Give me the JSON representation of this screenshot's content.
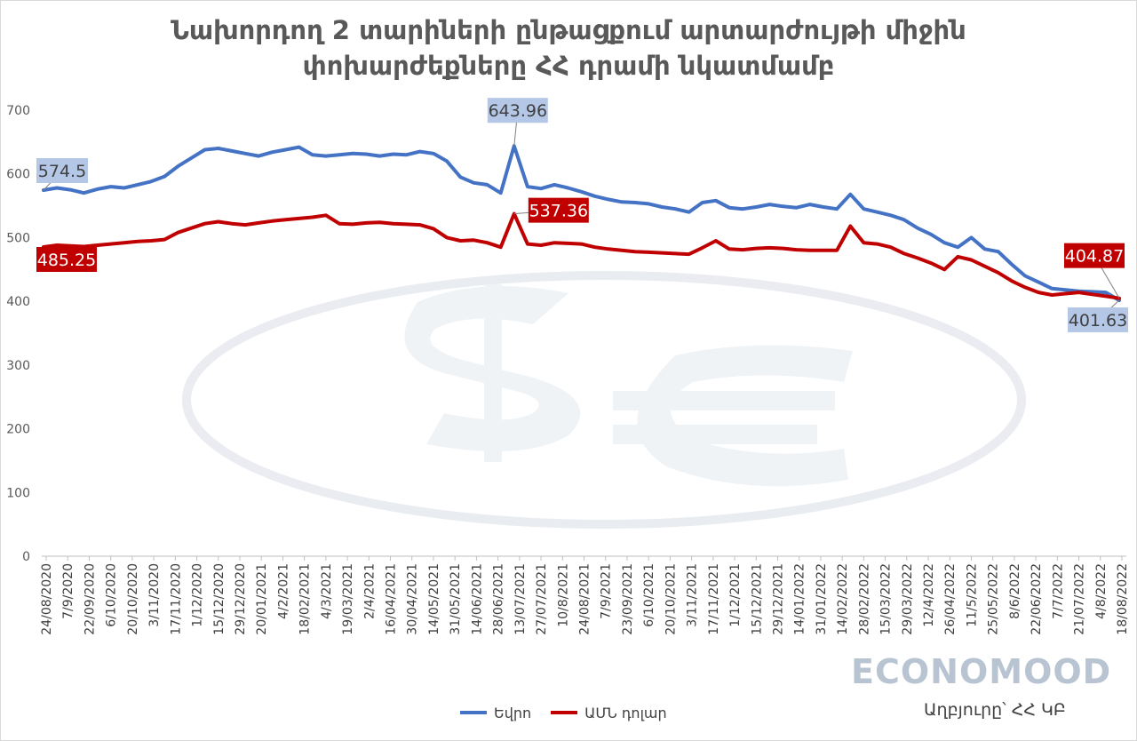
{
  "page": {
    "title_line1": "Նախորդող 2 տարիների ընթացքում արտարժույթի միջին",
    "title_line2": "փոխարժեքները ՀՀ դրամի նկատմամբ",
    "brand": "ECONOMOOD",
    "source": "Աղբյուրը՝ ՀՀ ԿԲ"
  },
  "legend": {
    "euro": "Եվրո",
    "usd": "ԱՄՆ դոլար"
  },
  "colors": {
    "euro": "#4472C4",
    "usd": "#C00000",
    "euro_label_bg": "#B4C7E7",
    "usd_label_bg": "#C00000",
    "grid": "#D9D9D9",
    "watermark": "#ECEFF3"
  },
  "chart_data": {
    "type": "line",
    "title": "Նախորդող 2 տարիների ընթացքում արտարժույթի միջին փոխարժեքները ՀՀ դրամի նկատմամբ",
    "ylim": [
      0,
      700
    ],
    "yticks": [
      0,
      100,
      200,
      300,
      400,
      500,
      600,
      700
    ],
    "grid": false,
    "legend_position": "bottom",
    "x_tick_labels": [
      "24/08/2020",
      "7/9/2020",
      "22/09/2020",
      "6/10/2020",
      "20/10/2020",
      "3/11/2020",
      "17/11/2020",
      "1/12/2020",
      "15/12/2020",
      "29/12/2020",
      "20/01/2021",
      "4/2/2021",
      "18/02/2021",
      "4/3/2021",
      "19/03/2021",
      "2/4/2021",
      "16/04/2021",
      "30/04/2021",
      "14/05/2021",
      "31/05/2021",
      "14/06/2021",
      "28/06/2021",
      "13/07/2021",
      "27/07/2021",
      "10/8/2021",
      "24/08/2021",
      "7/9/2021",
      "23/09/2021",
      "6/10/2021",
      "20/10/2021",
      "3/11/2021",
      "17/11/2021",
      "1/12/2021",
      "15/12/2021",
      "29/12/2021",
      "14/01/2022",
      "31/01/2022",
      "14/02/2022",
      "28/02/2022",
      "15/03/2022",
      "29/03/2022",
      "12/4/2022",
      "26/04/2022",
      "11/5/2022",
      "25/05/2022",
      "8/6/2022",
      "22/06/2022",
      "7/7/2022",
      "21/07/2022",
      "4/8/2022",
      "18/08/2022"
    ],
    "series": [
      {
        "name": "Եվրո",
        "color": "#4472C4",
        "values": [
          574.5,
          578,
          575,
          570,
          576,
          580,
          578,
          583,
          588,
          596,
          612,
          625,
          638,
          640,
          636,
          632,
          628,
          634,
          638,
          642,
          630,
          628,
          630,
          632,
          631,
          628,
          631,
          630,
          635,
          632,
          620,
          595,
          586,
          583,
          570,
          643.96,
          580,
          577,
          583,
          578,
          572,
          565,
          560,
          556,
          555,
          553,
          548,
          545,
          540,
          555,
          558,
          547,
          545,
          548,
          552,
          549,
          547,
          552,
          548,
          545,
          568,
          545,
          540,
          535,
          528,
          515,
          505,
          492,
          485,
          500,
          482,
          478,
          458,
          440,
          430,
          420,
          418,
          416,
          415,
          414,
          401.63
        ],
        "labels": [
          {
            "index": 0,
            "text": "574.5"
          },
          {
            "index": 35,
            "text": "643.96"
          },
          {
            "index": 80,
            "text": "401.63"
          }
        ]
      },
      {
        "name": "ԱՄՆ դոլար",
        "color": "#C00000",
        "values": [
          485.25,
          488,
          487,
          486,
          488,
          490,
          492,
          494,
          495,
          497,
          508,
          515,
          522,
          525,
          522,
          520,
          523,
          526,
          528,
          530,
          532,
          535,
          522,
          521,
          523,
          524,
          522,
          521,
          520,
          514,
          500,
          495,
          496,
          492,
          485,
          537.36,
          490,
          488,
          492,
          491,
          490,
          485,
          482,
          480,
          478,
          477,
          476,
          475,
          474,
          484,
          495,
          482,
          481,
          483,
          484,
          483,
          481,
          480,
          480,
          480,
          518,
          492,
          490,
          485,
          475,
          468,
          460,
          450,
          470,
          465,
          455,
          445,
          432,
          422,
          414,
          410,
          412,
          414,
          411,
          408,
          404.87
        ],
        "labels": [
          {
            "index": 0,
            "text": "485.25"
          },
          {
            "index": 35,
            "text": "537.36"
          },
          {
            "index": 80,
            "text": "404.87"
          }
        ]
      }
    ]
  }
}
